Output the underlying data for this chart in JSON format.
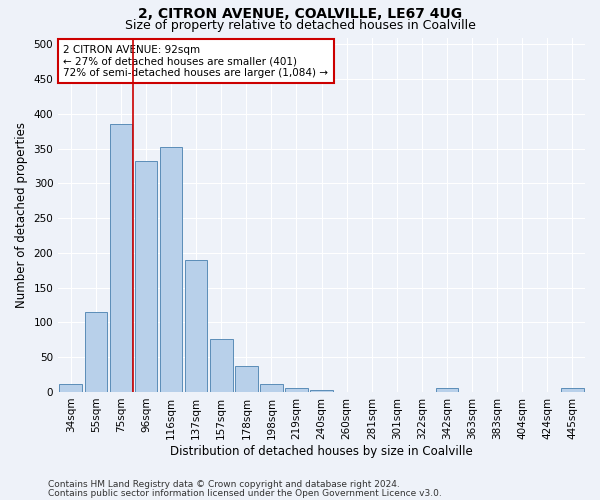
{
  "title_line1": "2, CITRON AVENUE, COALVILLE, LE67 4UG",
  "title_line2": "Size of property relative to detached houses in Coalville",
  "xlabel": "Distribution of detached houses by size in Coalville",
  "ylabel": "Number of detached properties",
  "bar_labels": [
    "34sqm",
    "55sqm",
    "75sqm",
    "96sqm",
    "116sqm",
    "137sqm",
    "157sqm",
    "178sqm",
    "198sqm",
    "219sqm",
    "240sqm",
    "260sqm",
    "281sqm",
    "301sqm",
    "322sqm",
    "342sqm",
    "363sqm",
    "383sqm",
    "404sqm",
    "424sqm",
    "445sqm"
  ],
  "bar_values": [
    11,
    115,
    385,
    332,
    352,
    190,
    76,
    38,
    11,
    6,
    3,
    0,
    0,
    0,
    0,
    5,
    0,
    0,
    0,
    0,
    5
  ],
  "bar_color": "#b8d0ea",
  "bar_edge_color": "#5b8db8",
  "vline_x": 2.5,
  "vline_color": "#cc0000",
  "ylim": [
    0,
    510
  ],
  "yticks": [
    0,
    50,
    100,
    150,
    200,
    250,
    300,
    350,
    400,
    450,
    500
  ],
  "annotation_line1": "2 CITRON AVENUE: 92sqm",
  "annotation_line2": "← 27% of detached houses are smaller (401)",
  "annotation_line3": "72% of semi-detached houses are larger (1,084) →",
  "annotation_box_color": "#ffffff",
  "annotation_box_edge": "#cc0000",
  "background_color": "#eef2f9",
  "grid_color": "#ffffff",
  "footer_line1": "Contains HM Land Registry data © Crown copyright and database right 2024.",
  "footer_line2": "Contains public sector information licensed under the Open Government Licence v3.0.",
  "title_fontsize": 10,
  "subtitle_fontsize": 9,
  "axis_label_fontsize": 8.5,
  "tick_fontsize": 7.5,
  "annotation_fontsize": 7.5,
  "footer_fontsize": 6.5
}
